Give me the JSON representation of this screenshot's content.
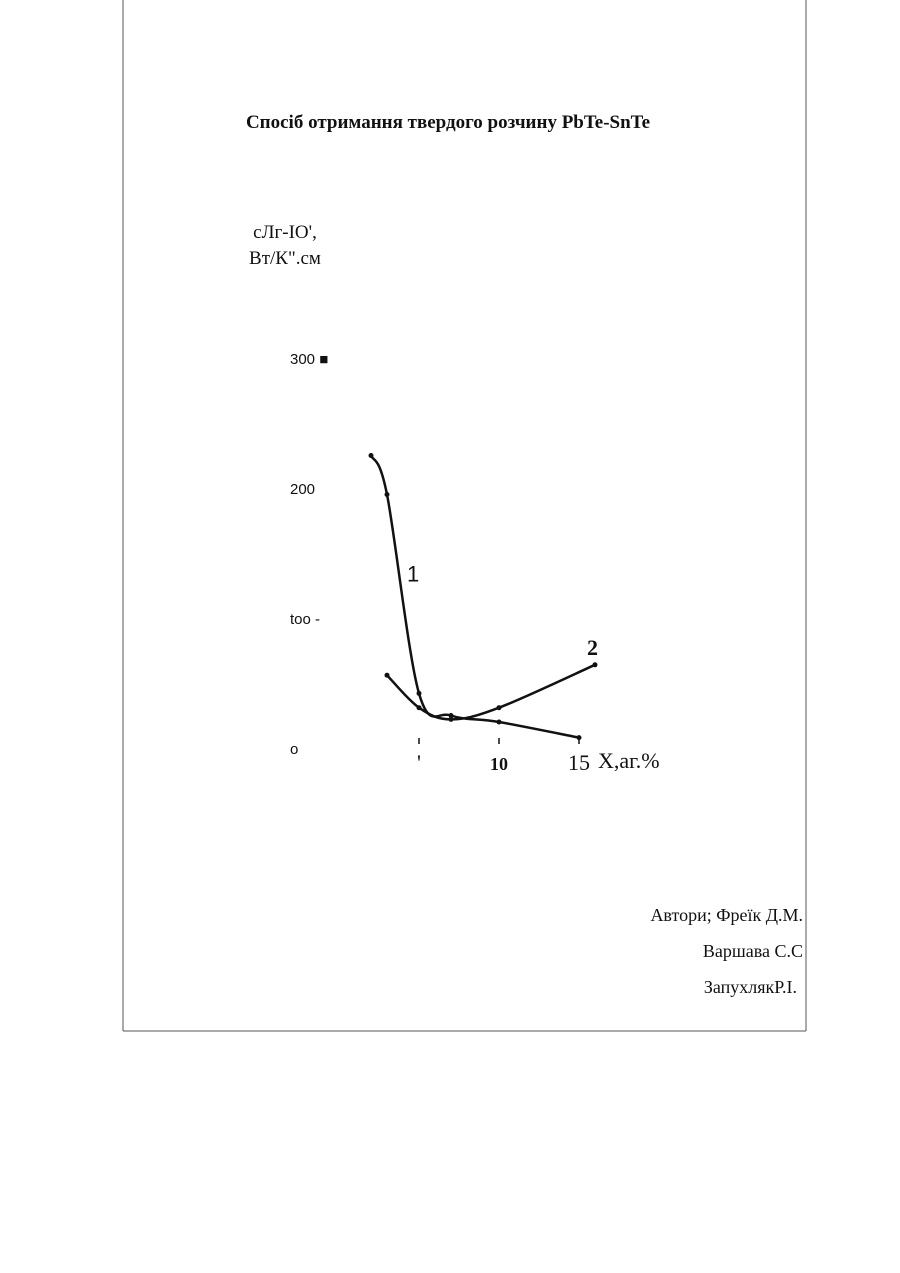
{
  "document": {
    "title": "Спосіб отримання твердого розчину PbTe-SnTe",
    "authors": [
      "Автори; Фреїк Д.М.",
      "Варшава С.С",
      "ЗапухлякР.І."
    ]
  },
  "chart_data": {
    "type": "line",
    "y_label": [
      "сЛг-IO',",
      "Вт/К\".см"
    ],
    "x_label": "X,аг.%",
    "xlim": [
      0,
      16
    ],
    "ylim": [
      0,
      300
    ],
    "xticks": [
      {
        "value": 5,
        "label": "'"
      },
      10,
      15
    ],
    "yticks": [
      {
        "value": 0,
        "label": "o"
      },
      {
        "value": 100,
        "label": "too -"
      },
      200,
      {
        "value": 300,
        "label": "300 ■"
      }
    ],
    "series": [
      {
        "name": "1",
        "color": "#111111",
        "x": [
          2,
          3,
          5,
          7,
          10,
          15
        ],
        "values": [
          225,
          195,
          42,
          25,
          20,
          8
        ]
      },
      {
        "name": "2",
        "color": "#111111",
        "x": [
          3,
          5,
          7,
          10,
          16
        ],
        "values": [
          56,
          31,
          22,
          31,
          64
        ]
      }
    ]
  }
}
